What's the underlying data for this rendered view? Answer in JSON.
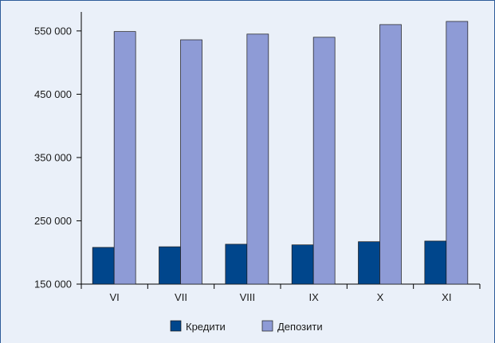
{
  "chart_data": {
    "type": "bar",
    "title": "",
    "xlabel": "",
    "ylabel": "",
    "categories": [
      "VI",
      "VII",
      "VIII",
      "IX",
      "X",
      "XI"
    ],
    "series": [
      {
        "name": "Кредити",
        "values": [
          208000,
          209000,
          213000,
          212000,
          217000,
          218000
        ],
        "color": "#00468c"
      },
      {
        "name": "Депозити",
        "values": [
          549000,
          536000,
          545000,
          540000,
          560000,
          565000
        ],
        "color": "#8e9bd6"
      }
    ],
    "ylim": [
      150000,
      580000
    ],
    "yticks": [
      150000,
      250000,
      350000,
      450000,
      550000
    ],
    "ytick_labels": [
      "150 000",
      "250 000",
      "350 000",
      "450 000",
      "550 000"
    ],
    "grid": false,
    "legend_position": "bottom-center"
  }
}
